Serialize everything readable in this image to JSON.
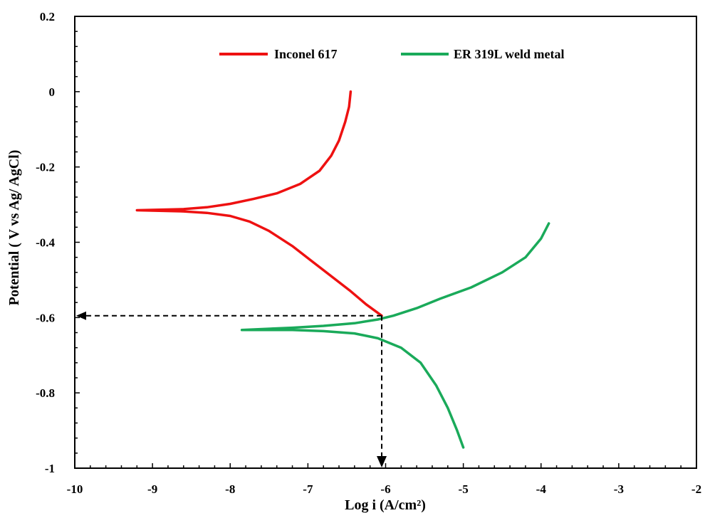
{
  "chart_data": {
    "type": "line",
    "title": "",
    "xlabel": "Log i (A/cm²)",
    "ylabel": "Potential ( V vs Ag/ AgCl)",
    "xlim": [
      -10,
      -2
    ],
    "ylim": [
      -1,
      0.2
    ],
    "x_ticks": [
      -10,
      -9,
      -8,
      -7,
      -6,
      -5,
      -4,
      -3,
      -2
    ],
    "y_ticks": [
      0.2,
      0,
      -0.2,
      -0.4,
      -0.6,
      -0.8,
      -1
    ],
    "grid": false,
    "legend_position": "top",
    "series": [
      {
        "name": "Inconel 617",
        "color": "#ee1111",
        "points": [
          [
            -6.45,
            0.0
          ],
          [
            -6.47,
            -0.04
          ],
          [
            -6.52,
            -0.08
          ],
          [
            -6.6,
            -0.13
          ],
          [
            -6.7,
            -0.17
          ],
          [
            -6.85,
            -0.21
          ],
          [
            -7.1,
            -0.245
          ],
          [
            -7.4,
            -0.27
          ],
          [
            -7.7,
            -0.285
          ],
          [
            -8.0,
            -0.298
          ],
          [
            -8.3,
            -0.307
          ],
          [
            -8.6,
            -0.312
          ],
          [
            -9.2,
            -0.315
          ],
          [
            -8.6,
            -0.318
          ],
          [
            -8.3,
            -0.322
          ],
          [
            -8.0,
            -0.33
          ],
          [
            -7.75,
            -0.345
          ],
          [
            -7.5,
            -0.37
          ],
          [
            -7.2,
            -0.41
          ],
          [
            -6.95,
            -0.45
          ],
          [
            -6.7,
            -0.49
          ],
          [
            -6.45,
            -0.53
          ],
          [
            -6.25,
            -0.565
          ],
          [
            -6.05,
            -0.595
          ]
        ]
      },
      {
        "name": "ER 319L weld metal",
        "color": "#1aaa5a",
        "points": [
          [
            -3.9,
            -0.35
          ],
          [
            -4.0,
            -0.39
          ],
          [
            -4.2,
            -0.44
          ],
          [
            -4.5,
            -0.48
          ],
          [
            -4.9,
            -0.52
          ],
          [
            -5.3,
            -0.55
          ],
          [
            -5.6,
            -0.575
          ],
          [
            -5.9,
            -0.595
          ],
          [
            -6.1,
            -0.605
          ],
          [
            -6.4,
            -0.615
          ],
          [
            -6.8,
            -0.622
          ],
          [
            -7.2,
            -0.627
          ],
          [
            -7.85,
            -0.633
          ],
          [
            -7.2,
            -0.633
          ],
          [
            -6.8,
            -0.636
          ],
          [
            -6.4,
            -0.642
          ],
          [
            -6.1,
            -0.655
          ],
          [
            -5.8,
            -0.68
          ],
          [
            -5.55,
            -0.72
          ],
          [
            -5.35,
            -0.78
          ],
          [
            -5.2,
            -0.84
          ],
          [
            -5.08,
            -0.9
          ],
          [
            -5.0,
            -0.945
          ]
        ]
      }
    ],
    "annotations": {
      "ecorr_v": -0.595,
      "icorr_log": -6.05,
      "arrow_color": "#000000"
    }
  }
}
